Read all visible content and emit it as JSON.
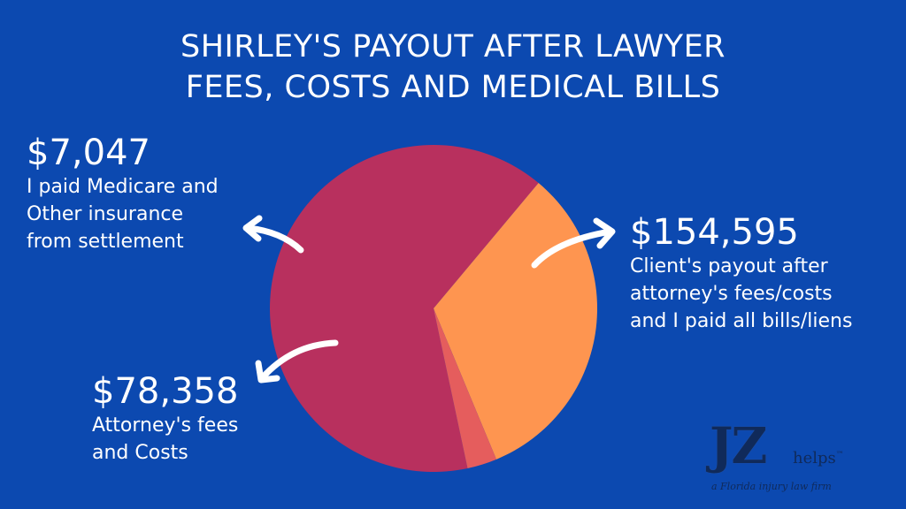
{
  "title": {
    "line1": "SHIRLEY'S PAYOUT AFTER LAWYER",
    "line2": "FEES, COSTS AND MEDICAL BILLS"
  },
  "callouts": {
    "medicare": {
      "amount": "$7,047",
      "lines": [
        "I paid Medicare and",
        "Other insurance",
        "from settlement"
      ]
    },
    "client": {
      "amount": "$154,595",
      "lines": [
        "Client's payout after",
        "attorney's fees/costs",
        "and I paid all bills/liens"
      ]
    },
    "attorney": {
      "amount": "$78,358",
      "lines": [
        "Attorney's fees",
        "and Costs"
      ]
    }
  },
  "logo": {
    "mark": "JZ",
    "word": "helps",
    "tm": "™",
    "tagline": "a Florida injury law firm"
  },
  "colors": {
    "background": "#0c49b0",
    "client": "#b8305e",
    "attorney": "#fe9550",
    "medicare": "#e55d5d",
    "arrow": "#ffffff"
  },
  "chart_data": {
    "type": "pie",
    "title": "SHIRLEY'S PAYOUT AFTER LAWYER FEES, COSTS AND MEDICAL BILLS",
    "slices": [
      {
        "label": "Client's payout after attorney's fees/costs and I paid all bills/liens",
        "value": 154595,
        "color": "#b8305e"
      },
      {
        "label": "Attorney's fees and Costs",
        "value": 78358,
        "color": "#fe9550"
      },
      {
        "label": "I paid Medicare and Other insurance from settlement",
        "value": 7047,
        "color": "#e55d5d"
      }
    ]
  }
}
